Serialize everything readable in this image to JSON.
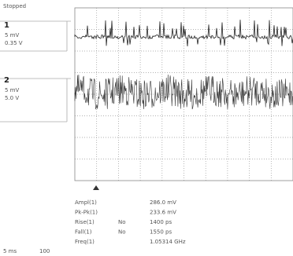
{
  "header": {
    "status": "Stopped"
  },
  "channels": [
    {
      "number": "1",
      "scale": "5 mV",
      "offset": "0.35 V"
    },
    {
      "number": "2",
      "scale": "5 mV",
      "offset": "5.0 V"
    }
  ],
  "measurements": [
    {
      "label": "Ampl(1)",
      "state": "",
      "value": "286.0 mV"
    },
    {
      "label": "Pk-Pk(1)",
      "state": "",
      "value": "233.6 mV"
    },
    {
      "label": "Rise(1)",
      "state": "No",
      "value": "1400 ps"
    },
    {
      "label": "Fall(1)",
      "state": "No",
      "value": "1550 ps"
    },
    {
      "label": "Freq(1)",
      "state": "",
      "value": "1.05314 GHz"
    }
  ],
  "footer": {
    "timebase": "5 ms",
    "rate": "100"
  }
}
